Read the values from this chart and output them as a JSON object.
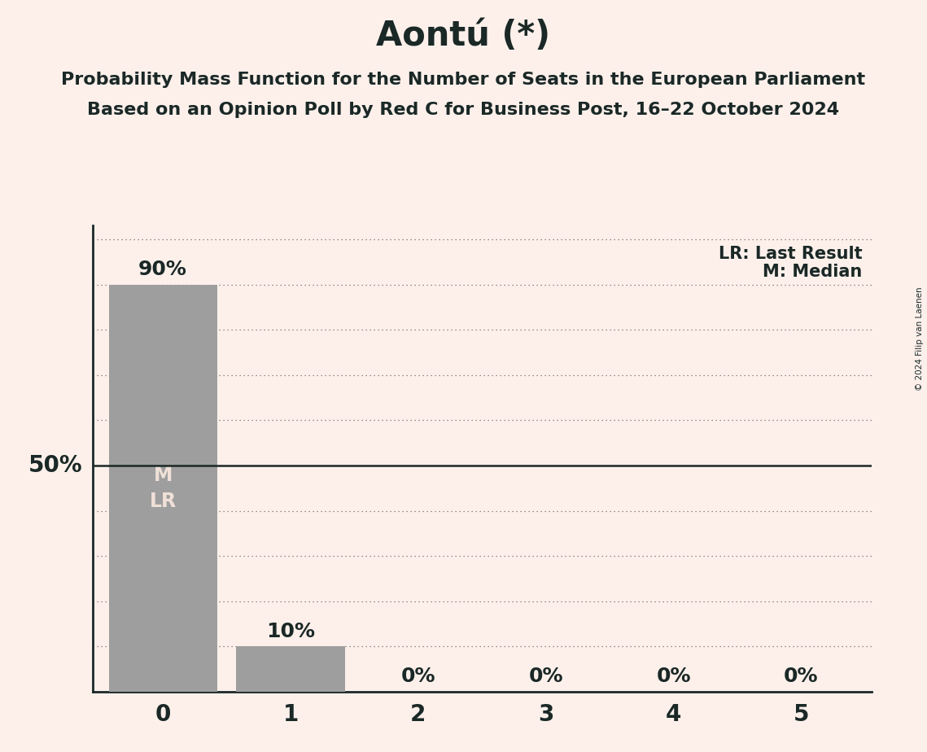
{
  "title": "Aontú (*)",
  "subtitle1": "Probability Mass Function for the Number of Seats in the European Parliament",
  "subtitle2": "Based on an Opinion Poll by Red C for Business Post, 16–22 October 2024",
  "copyright": "© 2024 Filip van Laenen",
  "categories": [
    0,
    1,
    2,
    3,
    4,
    5
  ],
  "values": [
    0.9,
    0.1,
    0.0,
    0.0,
    0.0,
    0.0
  ],
  "bar_labels": [
    "90%",
    "10%",
    "0%",
    "0%",
    "0%",
    "0%"
  ],
  "bar_color": "#9e9e9e",
  "background_color": "#fdf0eb",
  "text_color": "#1a2826",
  "median_line_y": 0.5,
  "ylabel_50": "50%",
  "legend_lr": "LR: Last Result",
  "legend_m": "M: Median",
  "bar_text_color": "#f0e0d8",
  "solid_line_color": "#1a2826",
  "dotted_line_color": "#555555",
  "yticks": [
    0.0,
    0.1,
    0.2,
    0.3,
    0.4,
    0.5,
    0.6,
    0.7,
    0.8,
    0.9,
    1.0
  ],
  "title_fontsize": 30,
  "subtitle_fontsize": 16,
  "bar_label_fontsize": 18,
  "axis_tick_fontsize": 20,
  "bar_inside_fontsize": 17,
  "legend_fontsize": 15,
  "ylabel_fontsize": 20
}
